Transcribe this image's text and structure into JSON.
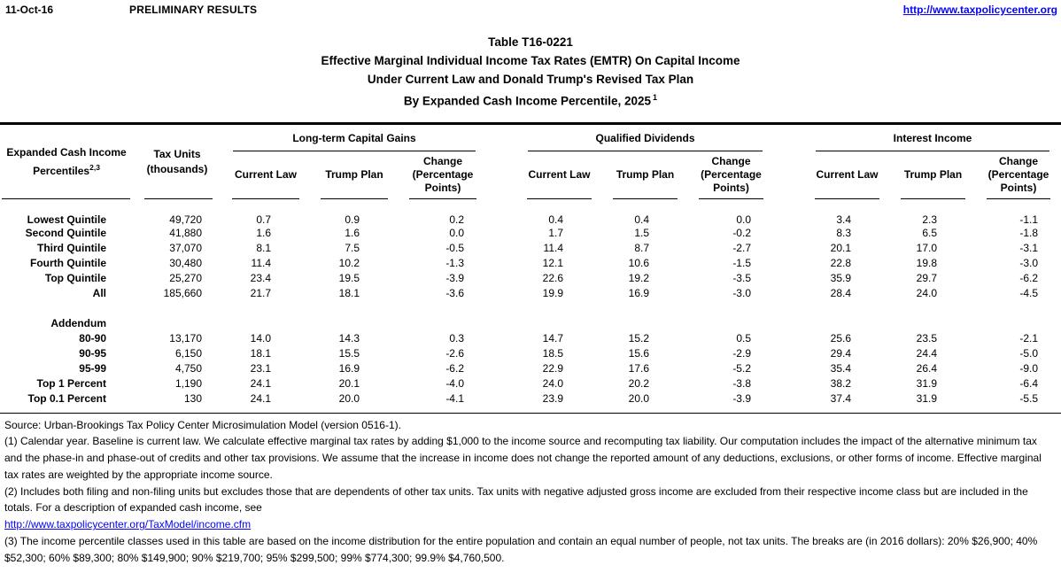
{
  "page_header": {
    "date": "11-Oct-16",
    "status": "PRELIMINARY RESULTS",
    "site_link": "http://www.taxpolicycenter.org"
  },
  "title": {
    "line1": "Table T16-0221",
    "line2": "Effective Marginal Individual Income Tax Rates (EMTR) On Capital Income",
    "line3": "Under Current Law and Donald Trump's Revised Tax Plan",
    "line4": "By Expanded Cash Income Percentile, 2025",
    "line4_superscript": "1"
  },
  "table": {
    "stub_header": {
      "line1": "Expanded Cash Income",
      "line2": "Percentiles",
      "superscript": "2,3"
    },
    "tax_units_header": {
      "line1": "Tax Units",
      "line2": "(thousands)"
    },
    "groups": [
      {
        "label": "Long-term Capital Gains"
      },
      {
        "label": "Qualified Dividends"
      },
      {
        "label": "Interest Income"
      }
    ],
    "sub_headers": [
      "Current Law",
      "Trump Plan",
      "Change (Percentage Points)"
    ],
    "rows": [
      {
        "label": "Lowest Quintile",
        "tax_units": "49,720",
        "values": [
          "0.7",
          "0.9",
          "0.2",
          "0.4",
          "0.4",
          "0.0",
          "3.4",
          "2.3",
          "-1.1"
        ]
      },
      {
        "label": "Second Quintile",
        "tax_units": "41,880",
        "values": [
          "1.6",
          "1.6",
          "0.0",
          "1.7",
          "1.5",
          "-0.2",
          "8.3",
          "6.5",
          "-1.8"
        ]
      },
      {
        "label": "Third Quintile",
        "tax_units": "37,070",
        "values": [
          "8.1",
          "7.5",
          "-0.5",
          "11.4",
          "8.7",
          "-2.7",
          "20.1",
          "17.0",
          "-3.1"
        ]
      },
      {
        "label": "Fourth Quintile",
        "tax_units": "30,480",
        "values": [
          "11.4",
          "10.2",
          "-1.3",
          "12.1",
          "10.6",
          "-1.5",
          "22.8",
          "19.8",
          "-3.0"
        ]
      },
      {
        "label": "Top Quintile",
        "tax_units": "25,270",
        "values": [
          "23.4",
          "19.5",
          "-3.9",
          "22.6",
          "19.2",
          "-3.5",
          "35.9",
          "29.7",
          "-6.2"
        ]
      },
      {
        "label": "All",
        "tax_units": "185,660",
        "values": [
          "21.7",
          "18.1",
          "-3.6",
          "19.9",
          "16.9",
          "-3.0",
          "28.4",
          "24.0",
          "-4.5"
        ]
      },
      {
        "spacer": true
      },
      {
        "label": "Addendum",
        "section": true,
        "tax_units": "",
        "values": [
          "",
          "",
          "",
          "",
          "",
          "",
          "",
          "",
          ""
        ]
      },
      {
        "label": "80-90",
        "tax_units": "13,170",
        "values": [
          "14.0",
          "14.3",
          "0.3",
          "14.7",
          "15.2",
          "0.5",
          "25.6",
          "23.5",
          "-2.1"
        ]
      },
      {
        "label": "90-95",
        "tax_units": "6,150",
        "values": [
          "18.1",
          "15.5",
          "-2.6",
          "18.5",
          "15.6",
          "-2.9",
          "29.4",
          "24.4",
          "-5.0"
        ]
      },
      {
        "label": "95-99",
        "tax_units": "4,750",
        "values": [
          "23.1",
          "16.9",
          "-6.2",
          "22.9",
          "17.6",
          "-5.2",
          "35.4",
          "26.4",
          "-9.0"
        ]
      },
      {
        "label": "Top 1 Percent",
        "tax_units": "1,190",
        "values": [
          "24.1",
          "20.1",
          "-4.0",
          "24.0",
          "20.2",
          "-3.8",
          "38.2",
          "31.9",
          "-6.4"
        ]
      },
      {
        "label": "Top 0.1 Percent",
        "tax_units": "130",
        "values": [
          "24.1",
          "20.0",
          "-4.1",
          "23.9",
          "20.0",
          "-3.9",
          "37.4",
          "31.9",
          "-5.5"
        ]
      }
    ]
  },
  "footer": {
    "source": "Source: Urban-Brookings Tax Policy Center Microsimulation Model (version 0516-1).",
    "note1": "(1) Calendar year. Baseline is current law. We calculate effective marginal tax rates by adding $1,000 to the income source and recomputing tax liability. Our computation includes the impact of the alternative minimum tax and the phase-in and phase-out of credits and other tax provisions. We assume that the increase in income does not change the reported amount of any deductions, exclusions, or other forms of income. Effective marginal tax rates are weighted by the appropriate income source.",
    "note2": "(2) Includes both filing and non-filing units but excludes those that are dependents of other tax units. Tax units with negative adjusted gross income are excluded from their respective income class but are included in the totals. For a description of expanded cash income, see",
    "note2_link": "http://www.taxpolicycenter.org/TaxModel/income.cfm",
    "note3": "(3) The income percentile classes used in this table are based on the income distribution for the entire population and contain an equal number of people, not tax units. The breaks are (in 2016 dollars): 20% $26,900; 40% $52,300; 60% $89,300; 80% $149,900; 90% $219,700; 95% $299,500; 99% $774,300; 99.9% $4,760,500."
  },
  "colors": {
    "text": "#000000",
    "link": "#0504f6"
  }
}
